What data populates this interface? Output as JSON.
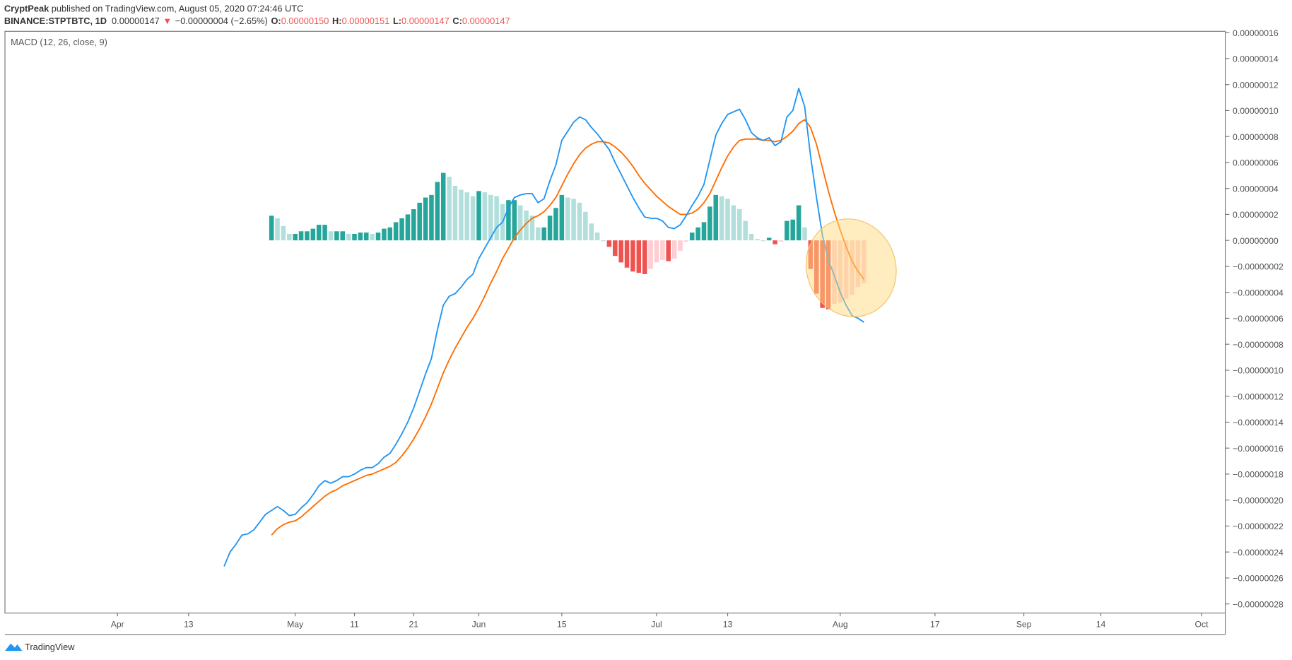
{
  "header": {
    "author": "CryptPeak",
    "published": " published on TradingView.com, August 05, 2020 07:24:46 UTC"
  },
  "quote": {
    "symbol": "BINANCE:STPTBTC, 1D",
    "last": "0.00000147",
    "arrow": "▼",
    "change": "−0.00000004 (−2.65%)",
    "o_label": "O:",
    "o": "0.00000150",
    "h_label": "H:",
    "h": "0.00000151",
    "l_label": "L:",
    "l": "0.00000147",
    "c_label": "C:",
    "c": "0.00000147"
  },
  "brand": "TradingView",
  "chart_data": {
    "type": "macd",
    "title": "MACD (12, 26, close, 9)",
    "x": [
      "Apr 19",
      "Apr 20",
      "Apr 21",
      "Apr 22",
      "Apr 23",
      "Apr 24",
      "Apr 25",
      "Apr 26",
      "Apr 27",
      "Apr 28",
      "Apr 29",
      "Apr 30",
      "May 1",
      "May 2",
      "May 3",
      "May 4",
      "May 5",
      "May 6",
      "May 7",
      "May 8",
      "May 9",
      "May 10",
      "May 11",
      "May 12",
      "May 13",
      "May 14",
      "May 15",
      "May 16",
      "May 17",
      "May 18",
      "May 19",
      "May 20",
      "May 21",
      "May 22",
      "May 23",
      "May 24",
      "May 25",
      "May 26",
      "May 27",
      "May 28",
      "May 29",
      "May 30",
      "May 31",
      "Jun 1",
      "Jun 2",
      "Jun 3",
      "Jun 4",
      "Jun 5",
      "Jun 6",
      "Jun 7",
      "Jun 8",
      "Jun 9",
      "Jun 10",
      "Jun 11",
      "Jun 12",
      "Jun 13",
      "Jun 14",
      "Jun 15",
      "Jun 16",
      "Jun 17",
      "Jun 18",
      "Jun 19",
      "Jun 20",
      "Jun 21",
      "Jun 22",
      "Jun 23",
      "Jun 24",
      "Jun 25",
      "Jun 26",
      "Jun 27",
      "Jun 28",
      "Jun 29",
      "Jun 30",
      "Jul 1",
      "Jul 2",
      "Jul 3",
      "Jul 4",
      "Jul 5",
      "Jul 6",
      "Jul 7",
      "Jul 8",
      "Jul 9",
      "Jul 10",
      "Jul 11",
      "Jul 12",
      "Jul 13",
      "Jul 14",
      "Jul 15",
      "Jul 16",
      "Jul 17",
      "Jul 18",
      "Jul 19",
      "Jul 20",
      "Jul 21",
      "Jul 22",
      "Jul 23",
      "Jul 24",
      "Jul 25",
      "Jul 26",
      "Jul 27",
      "Jul 28",
      "Jul 29",
      "Jul 30",
      "Jul 31",
      "Aug 1",
      "Aug 2",
      "Aug 3",
      "Aug 4",
      "Aug 5"
    ],
    "series": [
      {
        "color": "#2196f3",
        "values": [
          -2.51e-07,
          -2.4e-07,
          -2.34e-07,
          -2.27e-07,
          -2.26e-07,
          -2.23e-07,
          -2.17e-07,
          -2.11e-07,
          -2.08e-07,
          -2.05e-07,
          -2.08e-07,
          -2.12e-07,
          -2.11e-07,
          -2.06e-07,
          -2.02e-07,
          -1.96e-07,
          -1.89e-07,
          -1.85e-07,
          -1.87e-07,
          -1.85e-07,
          -1.82e-07,
          -1.82e-07,
          -1.8e-07,
          -1.77e-07,
          -1.75e-07,
          -1.75e-07,
          -1.72e-07,
          -1.67e-07,
          -1.64e-07,
          -1.57e-07,
          -1.49e-07,
          -1.4e-07,
          -1.29e-07,
          -1.16e-07,
          -1.03e-07,
          -9.1e-08,
          -6.9e-08,
          -5e-08,
          -4.3e-08,
          -4.1e-08,
          -3.6e-08,
          -3e-08,
          -2.6e-08,
          -1.4e-08,
          -6e-09,
          2e-09,
          1e-08,
          1.4e-08,
          2.5e-08,
          3.3e-08,
          3.5e-08,
          3.6e-08,
          3.6e-08,
          2.9e-08,
          3.2e-08,
          4.6e-08,
          5.8e-08,
          7.7e-08,
          8.4e-08,
          9.1e-08,
          9.5e-08,
          9.3e-08,
          8.7e-08,
          8.2e-08,
          7.6e-08,
          7e-08,
          6e-08,
          5.1e-08,
          4.2e-08,
          3.3e-08,
          2.5e-08,
          1.8e-08,
          1.7e-08,
          1.7e-08,
          1.5e-08,
          1e-08,
          9e-09,
          1.2e-08,
          1.9e-08,
          2.7e-08,
          3.4e-08,
          4.3e-08,
          6.2e-08,
          8.1e-08,
          9e-08,
          9.7e-08,
          9.9e-08,
          1.01e-07,
          9.3e-08,
          8.3e-08,
          7.9e-08,
          7.7e-08,
          7.9e-08,
          7.3e-08,
          7.6e-08,
          9.5e-08,
          1e-07,
          1.17e-07,
          1.03e-07,
          6.5e-08,
          3.3e-08,
          4e-09,
          -1.5e-08,
          -2.7e-08,
          -4e-08,
          -5e-08,
          -5.8e-08,
          -6e-08,
          -6.3e-08
        ]
      },
      {
        "color": "#ff6d00",
        "values": [
          null,
          null,
          null,
          null,
          null,
          null,
          null,
          null,
          -2.27e-07,
          -2.22e-07,
          -2.19e-07,
          -2.17e-07,
          -2.16e-07,
          -2.13e-07,
          -2.09e-07,
          -2.05e-07,
          -2.01e-07,
          -1.97e-07,
          -1.94e-07,
          -1.92e-07,
          -1.89e-07,
          -1.87e-07,
          -1.85e-07,
          -1.83e-07,
          -1.81e-07,
          -1.8e-07,
          -1.78e-07,
          -1.76e-07,
          -1.74e-07,
          -1.71e-07,
          -1.66e-07,
          -1.6e-07,
          -1.53e-07,
          -1.45e-07,
          -1.36e-07,
          -1.26e-07,
          -1.14e-07,
          -1.02e-07,
          -9.2e-08,
          -8.3e-08,
          -7.5e-08,
          -6.7e-08,
          -6e-08,
          -5.2e-08,
          -4.3e-08,
          -3.3e-08,
          -2.4e-08,
          -1.4e-08,
          -6e-09,
          2e-09,
          8e-09,
          1.3e-08,
          1.7e-08,
          1.9e-08,
          2.2e-08,
          2.7e-08,
          3.3e-08,
          4.2e-08,
          5.1e-08,
          5.9e-08,
          6.6e-08,
          7.1e-08,
          7.4e-08,
          7.6e-08,
          7.6e-08,
          7.5e-08,
          7.2e-08,
          6.8e-08,
          6.3e-08,
          5.7e-08,
          5e-08,
          4.4e-08,
          3.9e-08,
          3.4e-08,
          3e-08,
          2.6e-08,
          2.3e-08,
          2e-08,
          2e-08,
          2.1e-08,
          2.4e-08,
          2.9e-08,
          3.6e-08,
          4.6e-08,
          5.6e-08,
          6.5e-08,
          7.2e-08,
          7.7e-08,
          7.8e-08,
          7.8e-08,
          7.8e-08,
          7.7e-08,
          7.7e-08,
          7.6e-08,
          7.7e-08,
          8e-08,
          8.4e-08,
          9e-08,
          9.3e-08,
          8.7e-08,
          7.4e-08,
          5.6e-08,
          3.8e-08,
          2.2e-08,
          8e-09,
          -5e-09,
          -1.6e-08,
          -2.4e-08,
          -3e-08
        ]
      },
      {
        "color": [
          "#26a69a",
          "#b2dfdb",
          "#ef5350",
          "#ffcdd2"
        ],
        "values": [
          null,
          null,
          null,
          null,
          null,
          null,
          null,
          null,
          1.9e-08,
          1.7e-08,
          1.1e-08,
          5e-09,
          5e-09,
          7e-09,
          7e-09,
          9e-09,
          1.2e-08,
          1.2e-08,
          7e-09,
          7e-09,
          7e-09,
          5e-09,
          5e-09,
          6e-09,
          6e-09,
          5e-09,
          6e-09,
          9e-09,
          1e-08,
          1.4e-08,
          1.7e-08,
          2e-08,
          2.4e-08,
          2.9e-08,
          3.3e-08,
          3.5e-08,
          4.5e-08,
          5.2e-08,
          4.9e-08,
          4.2e-08,
          3.9e-08,
          3.7e-08,
          3.4e-08,
          3.8e-08,
          3.7e-08,
          3.5e-08,
          3.4e-08,
          2.8e-08,
          3.1e-08,
          3.1e-08,
          2.7e-08,
          2.3e-08,
          1.9e-08,
          1e-08,
          1e-08,
          1.9e-08,
          2.5e-08,
          3.5e-08,
          3.3e-08,
          3.2e-08,
          2.9e-08,
          2.2e-08,
          1.3e-08,
          6e-09,
          0,
          -5e-09,
          -1.2e-08,
          -1.7e-08,
          -2.1e-08,
          -2.4e-08,
          -2.5e-08,
          -2.6e-08,
          -2.2e-08,
          -1.7e-08,
          -1.5e-08,
          -1.6e-08,
          -1.4e-08,
          -8e-09,
          -1e-09,
          6e-09,
          1e-08,
          1.4e-08,
          2.6e-08,
          3.5e-08,
          3.4e-08,
          3.2e-08,
          2.7e-08,
          2.4e-08,
          1.5e-08,
          5e-09,
          1e-09,
          0,
          2e-09,
          -3e-09,
          -1e-09,
          1.5e-08,
          1.6e-08,
          2.7e-08,
          1e-08,
          -2.2e-08,
          -4.1e-08,
          -5.2e-08,
          -5.3e-08,
          -4.9e-08,
          -4.8e-08,
          -4.5e-08,
          -4.2e-08,
          -3.6e-08,
          -3.3e-08
        ]
      }
    ],
    "xlim": [
      "Mar 13",
      "Oct 5"
    ],
    "xticks": [
      {
        "value": "Apr 1",
        "label": "Apr"
      },
      {
        "value": "Apr 13",
        "label": "13"
      },
      {
        "value": "May 1",
        "label": "May"
      },
      {
        "value": "May 11",
        "label": "11"
      },
      {
        "value": "May 21",
        "label": "21"
      },
      {
        "value": "Jun 1",
        "label": "Jun"
      },
      {
        "value": "Jun 15",
        "label": "15"
      },
      {
        "value": "Jul 1",
        "label": "Jul"
      },
      {
        "value": "Jul 13",
        "label": "13"
      },
      {
        "value": "Aug 1",
        "label": "Aug"
      },
      {
        "value": "Aug 17",
        "label": "17"
      },
      {
        "value": "Sep 1",
        "label": "Sep"
      },
      {
        "value": "Sep 14",
        "label": "14"
      },
      {
        "value": "Oct 1",
        "label": "Oct"
      }
    ],
    "ylim": [
      -2.87e-07,
      1.61e-07
    ],
    "yticks": [
      {
        "value": 1.6e-07,
        "label": "0.00000016"
      },
      {
        "value": 1.4e-07,
        "label": "0.00000014"
      },
      {
        "value": 1.2e-07,
        "label": "0.00000012"
      },
      {
        "value": 1e-07,
        "label": "0.00000010"
      },
      {
        "value": 8e-08,
        "label": "0.00000008"
      },
      {
        "value": 6e-08,
        "label": "0.00000006"
      },
      {
        "value": 4e-08,
        "label": "0.00000004"
      },
      {
        "value": 2e-08,
        "label": "0.00000002"
      },
      {
        "value": 0,
        "label": "0.00000000"
      },
      {
        "value": -2e-08,
        "label": "−0.00000002"
      },
      {
        "value": -4e-08,
        "label": "−0.00000004"
      },
      {
        "value": -6e-08,
        "label": "−0.00000006"
      },
      {
        "value": -8e-08,
        "label": "−0.00000008"
      },
      {
        "value": -1e-07,
        "label": "−0.00000010"
      },
      {
        "value": -1.2e-07,
        "label": "−0.00000012"
      },
      {
        "value": -1.4e-07,
        "label": "−0.00000014"
      },
      {
        "value": -1.6e-07,
        "label": "−0.00000016"
      },
      {
        "value": -1.8e-07,
        "label": "−0.00000018"
      },
      {
        "value": -2e-07,
        "label": "−0.00000020"
      },
      {
        "value": -2.2e-07,
        "label": "−0.00000022"
      },
      {
        "value": -2.4e-07,
        "label": "−0.00000024"
      },
      {
        "value": -2.6e-07,
        "label": "−0.00000026"
      },
      {
        "value": -2.8e-07,
        "label": "−0.00000028"
      }
    ],
    "grid": false
  }
}
